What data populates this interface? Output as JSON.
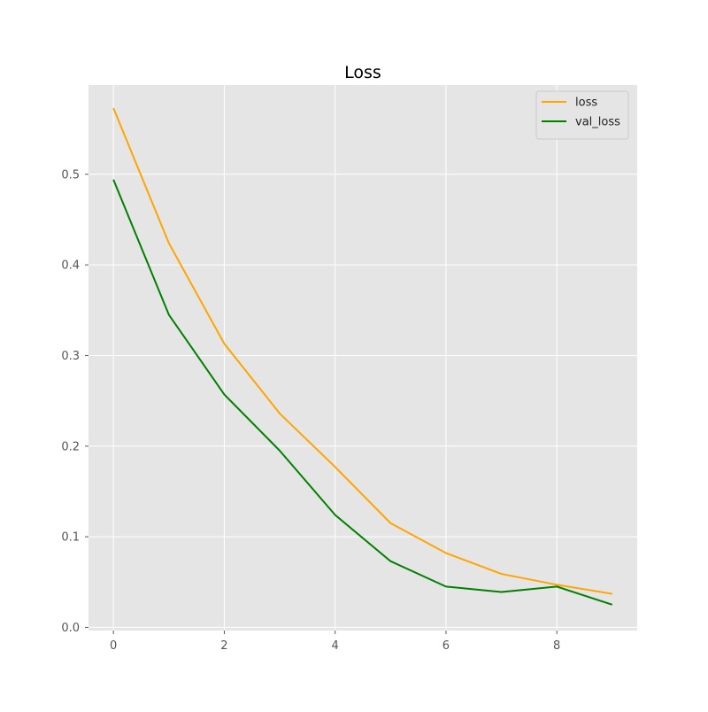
{
  "chart_data": {
    "type": "line",
    "title": "Loss",
    "xlabel": "",
    "ylabel": "",
    "x": [
      0,
      1,
      2,
      3,
      4,
      5,
      6,
      7,
      8,
      9
    ],
    "xlim": [
      -0.45,
      9.45
    ],
    "ylim": [
      -0.0035,
      0.5985
    ],
    "xticks": [
      0,
      2,
      4,
      6,
      8
    ],
    "yticks": [
      0.0,
      0.1,
      0.2,
      0.3,
      0.4,
      0.5
    ],
    "xtick_labels": [
      "0",
      "2",
      "4",
      "6",
      "8"
    ],
    "ytick_labels": [
      "0.0",
      "0.1",
      "0.2",
      "0.3",
      "0.4",
      "0.5"
    ],
    "grid": true,
    "legend_position": "top-right",
    "series": [
      {
        "name": "loss",
        "color": "#ffa500",
        "values": [
          0.573,
          0.424,
          0.313,
          0.236,
          0.177,
          0.115,
          0.082,
          0.059,
          0.047,
          0.037
        ]
      },
      {
        "name": "val_loss",
        "color": "#008000",
        "values": [
          0.494,
          0.345,
          0.257,
          0.195,
          0.124,
          0.073,
          0.045,
          0.039,
          0.045,
          0.025
        ]
      }
    ]
  }
}
